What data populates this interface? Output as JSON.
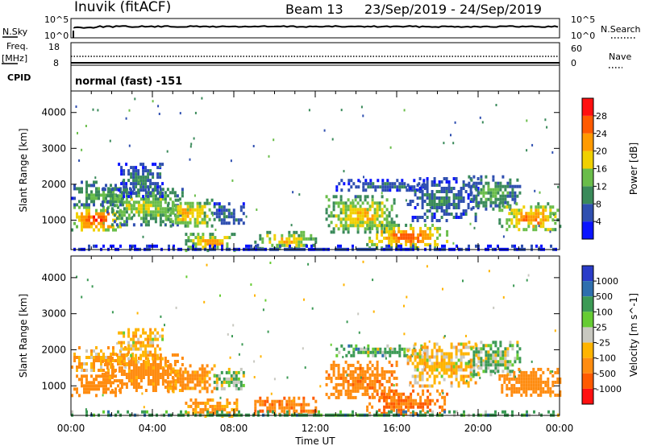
{
  "header": {
    "station": "Inuvik (fitACF)",
    "beam": "Beam 13",
    "date_range": "23/Sep/2019 - 24/Sep/2019"
  },
  "strips": {
    "nsky": {
      "label": "N.Sky",
      "tick_top": "10^5",
      "tick_bottom": "10^0"
    },
    "nsearch": {
      "label": "N.Search",
      "tick_top": "10^5",
      "tick_bottom": "10^0"
    },
    "freq": {
      "label_line1": "Freq.",
      "label_line2": "[MHz]",
      "tick_top": "18",
      "tick_bottom": "8"
    },
    "nave": {
      "label": "Nave",
      "tick_top": "60",
      "tick_bottom": "0"
    },
    "cpid": {
      "label": "CPID",
      "value": "normal (fast) -151"
    }
  },
  "chart_data": [
    {
      "type": "heatmap",
      "title": "",
      "xlabel": "Time UT",
      "ylabel": "Slant Range [km]",
      "x_ticks": [
        "00:00",
        "04:00",
        "08:00",
        "12:00",
        "16:00",
        "20:00",
        "00:00"
      ],
      "y_ticks": [
        1000,
        2000,
        3000,
        4000
      ],
      "xlim_hours": [
        0,
        24
      ],
      "ylim_km": [
        180,
        4600
      ],
      "colorbar": {
        "label": "Power [dB]",
        "ticks": [
          4,
          8,
          12,
          16,
          20,
          24,
          28
        ],
        "range": [
          0,
          32
        ],
        "colors": [
          "#0a14ff",
          "#2f4fb0",
          "#3a8a5a",
          "#6abd4a",
          "#f0d000",
          "#ff9a00",
          "#ff5a00",
          "#ff1010"
        ]
      }
    },
    {
      "type": "heatmap",
      "title": "",
      "xlabel": "Time UT",
      "ylabel": "Slant Range [km]",
      "x_ticks": [
        "00:00",
        "04:00",
        "08:00",
        "12:00",
        "16:00",
        "20:00",
        "00:00"
      ],
      "y_ticks": [
        1000,
        2000,
        3000,
        4000
      ],
      "xlim_hours": [
        0,
        24
      ],
      "ylim_km": [
        180,
        4600
      ],
      "colorbar": {
        "label": "Velocity [m s^-1]",
        "ticks": [
          "1000",
          "500",
          "100",
          "25",
          "-25",
          "-100",
          "-500",
          "-1000"
        ],
        "colors": [
          "#2a3cc8",
          "#2f6fae",
          "#3c9a55",
          "#66cc33",
          "#c8c8c0",
          "#ffb400",
          "#ff8c10",
          "#ff5a00",
          "#ff1010"
        ]
      }
    }
  ]
}
